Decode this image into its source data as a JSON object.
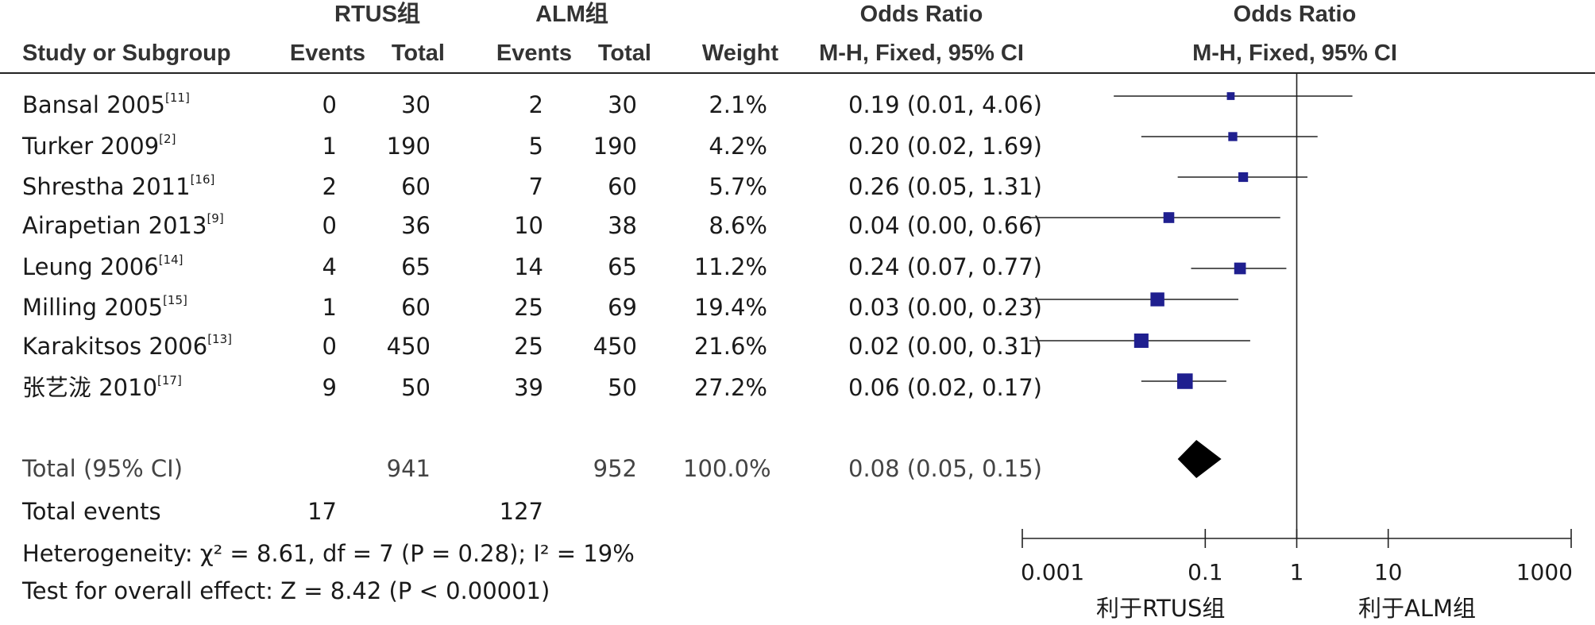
{
  "header": {
    "group1": "RTUS组",
    "group2": "ALM组",
    "or_title": "Odds Ratio",
    "plot_title": "Odds Ratio",
    "study": "Study or Subgroup",
    "events1": "Events",
    "total1": "Total",
    "events2": "Events",
    "total2": "Total",
    "weight": "Weight",
    "or_method": "M-H, Fixed, 95% CI",
    "plot_method": "M-H, Fixed, 95% CI"
  },
  "studies": [
    {
      "name": "Bansal 2005",
      "ref": "[11]",
      "e1": "0",
      "n1": "30",
      "e2": "2",
      "n2": "30",
      "weight": "2.1%",
      "or_text": "0.19 (0.01, 4.06)"
    },
    {
      "name": "Turker 2009",
      "ref": "[2]",
      "e1": "1",
      "n1": "190",
      "e2": "5",
      "n2": "190",
      "weight": "4.2%",
      "or_text": "0.20 (0.02, 1.69)"
    },
    {
      "name": "Shrestha 2011",
      "ref": "[16]",
      "e1": "2",
      "n1": "60",
      "e2": "7",
      "n2": "60",
      "weight": "5.7%",
      "or_text": "0.26 (0.05, 1.31)"
    },
    {
      "name": "Airapetian 2013",
      "ref": "[9]",
      "e1": "0",
      "n1": "36",
      "e2": "10",
      "n2": "38",
      "weight": "8.6%",
      "or_text": "0.04 (0.00, 0.66)"
    },
    {
      "name": "Leung 2006",
      "ref": "[14]",
      "e1": "4",
      "n1": "65",
      "e2": "14",
      "n2": "65",
      "weight": "11.2%",
      "or_text": "0.24 (0.07, 0.77)"
    },
    {
      "name": "Milling 2005",
      "ref": "[15]",
      "e1": "1",
      "n1": "60",
      "e2": "25",
      "n2": "69",
      "weight": "19.4%",
      "or_text": "0.03 (0.00, 0.23)"
    },
    {
      "name": "Karakitsos 2006",
      "ref": "[13]",
      "e1": "0",
      "n1": "450",
      "e2": "25",
      "n2": "450",
      "weight": "21.6%",
      "or_text": "0.02 (0.00, 0.31)"
    },
    {
      "name": "张艺泷 2010",
      "ref": "[17]",
      "e1": "9",
      "n1": "50",
      "e2": "39",
      "n2": "50",
      "weight": "27.2%",
      "or_text": "0.06 (0.02, 0.17)"
    }
  ],
  "total": {
    "label": "Total (95% CI)",
    "n1": "941",
    "n2": "952",
    "weight": "100.0%",
    "or_text": "0.08 (0.05, 0.15)"
  },
  "total_events": {
    "label": "Total events",
    "e1": "17",
    "e2": "127"
  },
  "heterogeneity": "Heterogeneity: χ² = 8.61, df = 7 (P = 0.28); I² = 19%",
  "overall_effect": "Test for overall effect: Z = 8.42 (P < 0.00001)",
  "favours": {
    "left": "利于RTUS组",
    "right": "利于ALM组"
  },
  "colors": {
    "marker": "#1f1f8f",
    "diamond": "#000000",
    "line": "#222222"
  },
  "chart_data": {
    "type": "forest",
    "x_scale": "log",
    "xlim": [
      0.001,
      1000
    ],
    "x_ticks": [
      "0.001",
      "0.1",
      "1",
      "10",
      "1000"
    ],
    "reference_line": 1,
    "points": [
      {
        "study": "Bansal 2005",
        "or": 0.19,
        "lo": 0.01,
        "hi": 4.06,
        "weight": 2.1
      },
      {
        "study": "Turker 2009",
        "or": 0.2,
        "lo": 0.02,
        "hi": 1.69,
        "weight": 4.2
      },
      {
        "study": "Shrestha 2011",
        "or": 0.26,
        "lo": 0.05,
        "hi": 1.31,
        "weight": 5.7
      },
      {
        "study": "Airapetian 2013",
        "or": 0.04,
        "lo": 0.0,
        "hi": 0.66,
        "weight": 8.6
      },
      {
        "study": "Leung 2006",
        "or": 0.24,
        "lo": 0.07,
        "hi": 0.77,
        "weight": 11.2
      },
      {
        "study": "Milling 2005",
        "or": 0.03,
        "lo": 0.0,
        "hi": 0.23,
        "weight": 19.4
      },
      {
        "study": "Karakitsos 2006",
        "or": 0.02,
        "lo": 0.0,
        "hi": 0.31,
        "weight": 21.6
      },
      {
        "study": "张艺泷 2010",
        "or": 0.06,
        "lo": 0.02,
        "hi": 0.17,
        "weight": 27.2
      }
    ],
    "pooled": {
      "or": 0.08,
      "lo": 0.05,
      "hi": 0.15
    }
  }
}
